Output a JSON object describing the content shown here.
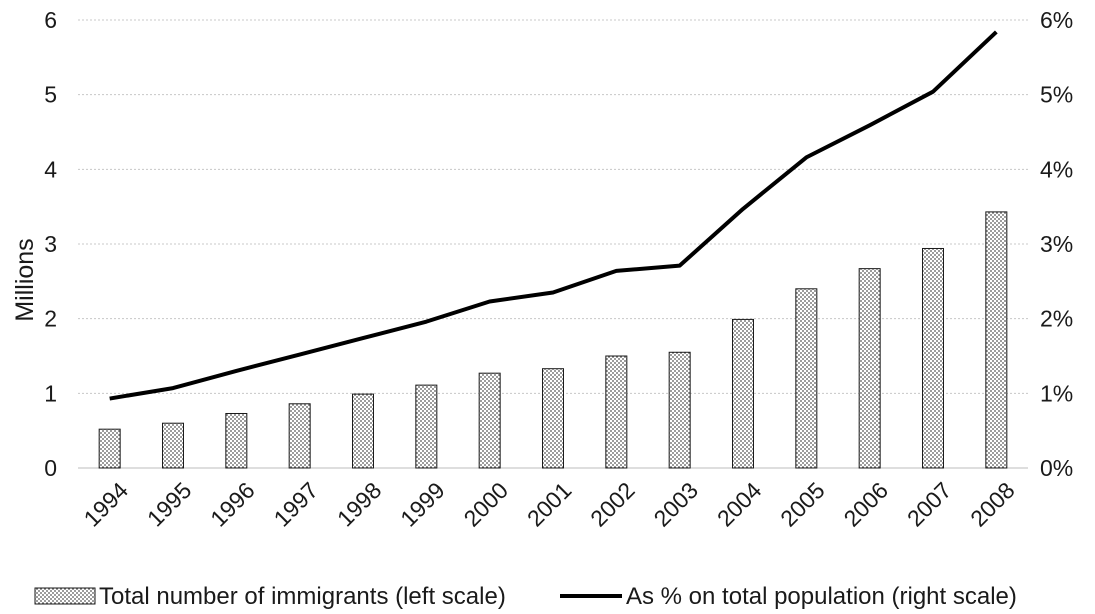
{
  "chart_data": {
    "type": "bar",
    "categories": [
      "1994",
      "1995",
      "1996",
      "1997",
      "1998",
      "1999",
      "2000",
      "2001",
      "2002",
      "2003",
      "2004",
      "2005",
      "2006",
      "2007",
      "2008"
    ],
    "series": [
      {
        "name": "Total number of immigrants (left scale)",
        "type": "bar",
        "axis": "left",
        "values": [
          0.52,
          0.6,
          0.73,
          0.86,
          0.99,
          1.11,
          1.27,
          1.33,
          1.5,
          1.55,
          1.99,
          2.4,
          2.67,
          2.94,
          3.43
        ]
      },
      {
        "name": "As % on total population (right scale)",
        "type": "line",
        "axis": "right",
        "values": [
          0.93,
          1.07,
          1.3,
          1.52,
          1.74,
          1.96,
          2.23,
          2.35,
          2.64,
          2.71,
          3.47,
          4.16,
          4.59,
          5.04,
          5.84
        ]
      }
    ],
    "ylabel": "Millions",
    "ylim": [
      0,
      6
    ],
    "y_ticks": [
      "0",
      "1",
      "2",
      "3",
      "4",
      "5",
      "6"
    ],
    "y2lim": [
      0,
      6
    ],
    "y2_ticks": [
      "0%",
      "1%",
      "2%",
      "3%",
      "4%",
      "5%",
      "6%"
    ],
    "grid": true,
    "legend": "bottom",
    "colors": {
      "bar_fill": "#ffffff",
      "bar_dots": "#4a4a4a",
      "bar_stroke": "#1a1a1a",
      "line": "#000000",
      "grid": "#c8c8c8"
    }
  }
}
